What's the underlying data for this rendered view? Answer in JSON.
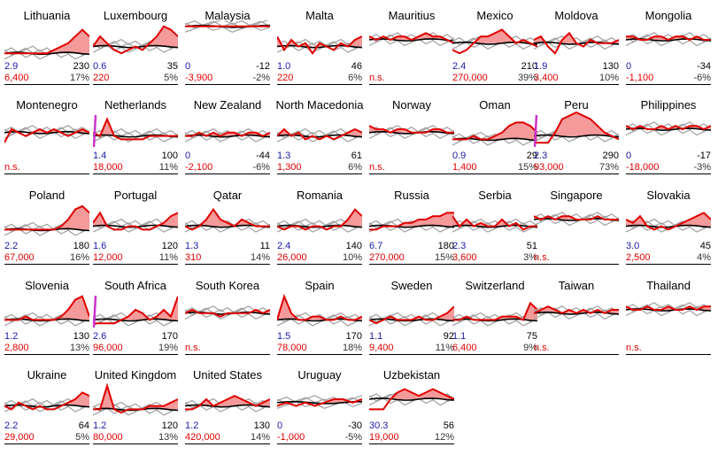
{
  "chart_data": {
    "type": "line",
    "description_keys": [
      "name",
      "a",
      "b",
      "c",
      "d",
      "series"
    ],
    "colors": {
      "excess": "#e00000",
      "fill": "#f59a9a",
      "baseline": "#000000",
      "history": "#a0a0a0",
      "offscale": "#cc33cc",
      "left_top": "#1a1aa6",
      "left_bottom": "#e00000"
    },
    "panels": [
      {
        "name": "Lithuania",
        "a": "2.9",
        "b": "230",
        "c": "6,400",
        "d": "17%",
        "s": [
          1,
          1,
          1,
          1,
          1,
          1,
          1,
          2,
          3,
          4,
          6,
          8,
          6
        ]
      },
      {
        "name": "Luxembourg",
        "a": "0.6",
        "b": "35",
        "c": "220",
        "d": "5%",
        "s": [
          3,
          6,
          4,
          2,
          1,
          2,
          3,
          2,
          4,
          6,
          9,
          8,
          6
        ]
      },
      {
        "name": "Malaysia",
        "a": "0",
        "b": "-12",
        "c": "-3,900",
        "d": "-2%",
        "s": [
          9,
          9,
          9,
          9,
          9,
          9,
          9,
          9,
          9,
          9
        ]
      },
      {
        "name": "Malta",
        "a": "1.0",
        "b": "46",
        "c": "220",
        "d": "6%",
        "s": [
          6,
          2,
          5,
          3,
          4,
          1,
          4,
          3,
          2,
          4,
          3,
          5,
          6
        ]
      },
      {
        "name": "Mauritius",
        "a": "",
        "b": "",
        "c": "n.s.",
        "d": "",
        "s": [
          6,
          5,
          6,
          5,
          6,
          6,
          5,
          6,
          7,
          6,
          6,
          5,
          4
        ]
      },
      {
        "name": "Mexico",
        "a": "2.4",
        "b": "210",
        "c": "270,000",
        "d": "39%",
        "s": [
          2,
          1,
          2,
          4,
          6,
          6,
          7,
          8,
          6,
          4,
          5,
          4,
          3
        ]
      },
      {
        "name": "Moldova",
        "a": "1.9",
        "b": "130",
        "c": "3,400",
        "d": "10%",
        "s": [
          5,
          6,
          3,
          1,
          5,
          7,
          4,
          3,
          5,
          4,
          4,
          4,
          5
        ]
      },
      {
        "name": "Mongolia",
        "a": "0",
        "b": "-34",
        "c": "-1,100",
        "d": "-6%",
        "s": [
          6,
          6,
          5,
          5,
          6,
          6,
          5,
          6,
          6,
          5,
          6,
          5,
          5
        ]
      },
      {
        "name": "Montenegro",
        "a": "",
        "b": "",
        "c": "n.s.",
        "d": "",
        "s": [
          1,
          5,
          4,
          3,
          4,
          5,
          4,
          5,
          4,
          3,
          4,
          5,
          4
        ]
      },
      {
        "name": "Netherlands",
        "a": "1.4",
        "b": "100",
        "c": "18,000",
        "d": "11%",
        "s": [
          4,
          3,
          8,
          3,
          2,
          2,
          2,
          2,
          3,
          3,
          3,
          3,
          3
        ]
      },
      {
        "name": "New Zealand",
        "a": "0",
        "b": "-44",
        "c": "-2,100",
        "d": "-6%",
        "s": [
          3,
          3,
          4,
          3,
          4,
          3,
          4,
          4,
          3,
          4,
          4,
          3,
          4
        ]
      },
      {
        "name": "North Macedonia",
        "a": "1.3",
        "b": "61",
        "c": "1,300",
        "d": "6%",
        "s": [
          3,
          5,
          3,
          4,
          2,
          3,
          2,
          3,
          2,
          3,
          4,
          5,
          4
        ]
      },
      {
        "name": "Norway",
        "a": "",
        "b": "",
        "c": "n.s.",
        "d": "",
        "s": [
          6,
          5,
          5,
          4,
          5,
          5,
          4,
          4,
          4,
          5,
          5,
          4,
          4
        ]
      },
      {
        "name": "Oman",
        "a": "0.9",
        "b": "29",
        "c": "1,400",
        "d": "15%",
        "s": [
          2,
          2,
          2,
          3,
          2,
          2,
          3,
          4,
          6,
          7,
          7,
          6,
          4
        ]
      },
      {
        "name": "Peru",
        "a": "2.3",
        "b": "290",
        "c": "93,000",
        "d": "73%",
        "s": [
          1,
          1,
          1,
          4,
          8,
          9,
          10,
          9,
          8,
          6,
          4,
          3,
          2
        ]
      },
      {
        "name": "Philippines",
        "a": "0",
        "b": "-17",
        "c": "-18,000",
        "d": "-3%",
        "s": [
          6,
          5,
          6,
          5,
          5,
          6,
          5,
          6,
          5,
          6,
          6,
          5,
          6
        ]
      },
      {
        "name": "Poland",
        "a": "2.2",
        "b": "180",
        "c": "67,000",
        "d": "16%",
        "s": [
          2,
          2,
          2,
          2,
          2,
          2,
          2,
          2,
          3,
          5,
          8,
          9,
          7
        ]
      },
      {
        "name": "Portugal",
        "a": "1.6",
        "b": "120",
        "c": "12,000",
        "d": "11%",
        "s": [
          4,
          7,
          3,
          2,
          2,
          3,
          3,
          2,
          2,
          3,
          4,
          6,
          7
        ]
      },
      {
        "name": "Qatar",
        "a": "1.3",
        "b": "11",
        "c": "310",
        "d": "14%",
        "s": [
          3,
          2,
          3,
          5,
          8,
          5,
          4,
          3,
          5,
          4,
          3,
          3,
          3
        ]
      },
      {
        "name": "Romania",
        "a": "2.4",
        "b": "140",
        "c": "26,000",
        "d": "10%",
        "s": [
          3,
          2,
          3,
          3,
          2,
          3,
          3,
          2,
          3,
          3,
          5,
          8,
          6
        ]
      },
      {
        "name": "Russia",
        "a": "6.7",
        "b": "180",
        "c": "270,000",
        "d": "15%",
        "s": [
          2,
          2,
          3,
          3,
          3,
          4,
          4,
          5,
          5,
          6,
          6,
          7,
          7
        ]
      },
      {
        "name": "Serbia",
        "a": "2.3",
        "b": "51",
        "c": "3,600",
        "d": "3%",
        "s": [
          6,
          3,
          5,
          3,
          4,
          3,
          3,
          5,
          3,
          4,
          2,
          3,
          3
        ]
      },
      {
        "name": "Singapore",
        "a": "",
        "b": "",
        "c": "n.s.",
        "d": "",
        "s": [
          6,
          5,
          6,
          5,
          6,
          6,
          5,
          5,
          5,
          6,
          5,
          5,
          5
        ]
      },
      {
        "name": "Slovakia",
        "a": "3.0",
        "b": "45",
        "c": "2,500",
        "d": "4%",
        "s": [
          5,
          4,
          6,
          3,
          2,
          3,
          2,
          3,
          4,
          5,
          6,
          7,
          5
        ]
      },
      {
        "name": "Slovenia",
        "a": "1.2",
        "b": "130",
        "c": "2,800",
        "d": "13%",
        "s": [
          2,
          2,
          2,
          3,
          2,
          2,
          2,
          2,
          3,
          5,
          8,
          9,
          3
        ]
      },
      {
        "name": "South Africa",
        "a": "2.6",
        "b": "170",
        "c": "96,000",
        "d": "19%",
        "s": [
          1,
          1,
          1,
          1,
          2,
          3,
          5,
          4,
          2,
          3,
          5,
          3,
          9
        ]
      },
      {
        "name": "South Korea",
        "a": "",
        "b": "",
        "c": "n.s.",
        "d": "",
        "s": [
          4,
          5,
          4,
          4,
          4,
          3,
          4,
          4,
          4,
          4,
          5,
          4,
          5
        ]
      },
      {
        "name": "Spain",
        "a": "1.5",
        "b": "170",
        "c": "78,000",
        "d": "18%",
        "s": [
          2,
          9,
          4,
          2,
          2,
          3,
          3,
          2,
          2,
          3,
          2,
          2,
          3
        ]
      },
      {
        "name": "Sweden",
        "a": "1.1",
        "b": "92",
        "c": "9,400",
        "d": "11%",
        "s": [
          2,
          1,
          2,
          3,
          2,
          2,
          2,
          3,
          2,
          2,
          3,
          4,
          6
        ]
      },
      {
        "name": "Switzerland",
        "a": "1.1",
        "b": "75",
        "c": "6,400",
        "d": "9%",
        "s": [
          2,
          2,
          3,
          2,
          2,
          2,
          2,
          3,
          3,
          3,
          2,
          7,
          5
        ]
      },
      {
        "name": "Taiwan",
        "a": "",
        "b": "",
        "c": "n.s.",
        "d": "",
        "s": [
          4,
          5,
          6,
          5,
          4,
          5,
          4,
          5,
          4,
          5,
          4,
          5,
          5
        ]
      },
      {
        "name": "Thailand",
        "a": "",
        "b": "",
        "c": "n.s.",
        "d": "",
        "s": [
          6,
          5,
          5,
          6,
          5,
          5,
          6,
          5,
          5,
          6,
          5,
          6,
          6
        ]
      },
      {
        "name": "Ukraine",
        "a": "2.2",
        "b": "64",
        "c": "29,000",
        "d": "5%",
        "s": [
          3,
          2,
          4,
          3,
          2,
          3,
          2,
          2,
          3,
          4,
          5,
          7,
          6
        ]
      },
      {
        "name": "United Kingdom",
        "a": "1.2",
        "b": "120",
        "c": "80,000",
        "d": "13%",
        "s": [
          2,
          2,
          9,
          2,
          1,
          2,
          2,
          2,
          3,
          3,
          3,
          4,
          5
        ]
      },
      {
        "name": "United States",
        "a": "1.2",
        "b": "130",
        "c": "420,000",
        "d": "14%",
        "s": [
          2,
          2,
          3,
          5,
          3,
          4,
          5,
          6,
          5,
          4,
          3,
          4,
          5
        ]
      },
      {
        "name": "Uruguay",
        "a": "0",
        "b": "-30",
        "c": "-1,000",
        "d": "-5%",
        "s": [
          3,
          4,
          3,
          4,
          3,
          4,
          5,
          5,
          4,
          5
        ]
      },
      {
        "name": "Uzbekistan",
        "a": "30.3",
        "b": "56",
        "c": "19,000",
        "d": "12%",
        "s": [
          2,
          2,
          2,
          5,
          7,
          8,
          7,
          6,
          7,
          8,
          7,
          6,
          5
        ]
      }
    ]
  }
}
